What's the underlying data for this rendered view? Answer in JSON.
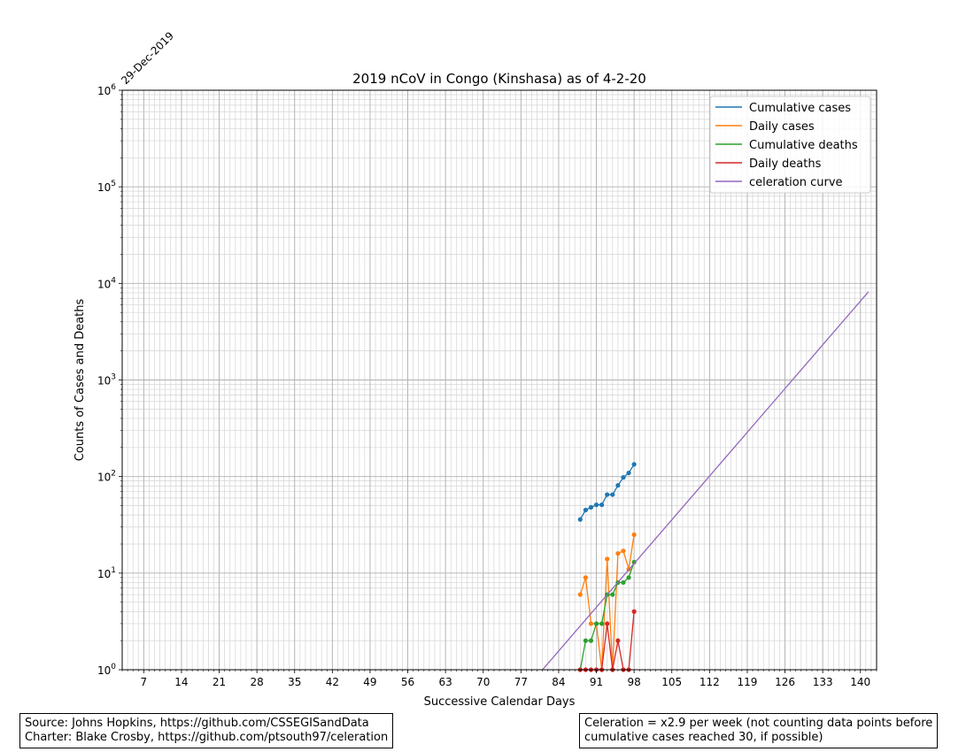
{
  "chart_data": {
    "type": "line",
    "title": "2019 nCoV in Congo (Kinshasa) as of 4-2-20",
    "xlabel": "Successive Calendar Days",
    "ylabel": "Counts of Cases and Deaths",
    "start_date_label": "29-Dec-2019",
    "x_scale": "linear",
    "y_scale": "log",
    "xlim": [
      3,
      143
    ],
    "ylim": [
      1,
      1000000
    ],
    "x_ticks": [
      7,
      14,
      21,
      28,
      35,
      42,
      49,
      56,
      63,
      70,
      77,
      84,
      91,
      98,
      105,
      112,
      119,
      126,
      133,
      140
    ],
    "y_ticks": [
      1,
      10,
      100,
      1000,
      10000,
      100000,
      1000000
    ],
    "y_tick_labels": [
      {
        "base": "10",
        "exp": "0"
      },
      {
        "base": "10",
        "exp": "1"
      },
      {
        "base": "10",
        "exp": "2"
      },
      {
        "base": "10",
        "exp": "3"
      },
      {
        "base": "10",
        "exp": "4"
      },
      {
        "base": "10",
        "exp": "5"
      },
      {
        "base": "10",
        "exp": "6"
      }
    ],
    "grid": true,
    "legend_position": "top-right",
    "series": [
      {
        "name": "Cumulative cases",
        "color": "#1f77b4",
        "markers": true,
        "x": [
          88,
          89,
          90,
          91,
          92,
          93,
          94,
          95,
          96,
          97,
          98
        ],
        "y": [
          36,
          45,
          48,
          51,
          51,
          65,
          65,
          81,
          98,
          109,
          134
        ]
      },
      {
        "name": "Daily cases",
        "color": "#ff7f0e",
        "markers": true,
        "x": [
          88,
          89,
          90,
          91,
          92,
          93,
          94,
          95,
          96,
          97,
          98
        ],
        "y": [
          6,
          9,
          3,
          3,
          1,
          14,
          1,
          16,
          17,
          11,
          25
        ]
      },
      {
        "name": "Cumulative deaths",
        "color": "#2ca02c",
        "markers": true,
        "x": [
          88,
          89,
          90,
          91,
          92,
          93,
          94,
          95,
          96,
          97,
          98
        ],
        "y": [
          1,
          2,
          2,
          3,
          3,
          6,
          6,
          8,
          8,
          9,
          13
        ]
      },
      {
        "name": "Daily deaths",
        "color": "#d62728",
        "markers": true,
        "x": [
          88,
          89,
          90,
          91,
          92,
          93,
          94,
          95,
          96,
          97,
          98
        ],
        "y": [
          1,
          1,
          1,
          1,
          1,
          3,
          1,
          2,
          1,
          1,
          4
        ]
      },
      {
        "name": "celeration curve",
        "color": "#9467bd",
        "markers": false,
        "x": [
          81,
          141.5
        ],
        "y": [
          1,
          8200
        ]
      }
    ]
  },
  "notes": {
    "source_line1": "Source: Johns Hopkins, https://github.com/CSSEGISandData",
    "source_line2": "Charter: Blake Crosby, https://github.com/ptsouth97/celeration",
    "celeration_line1": "Celeration = x2.9 per week (not counting data points before",
    "celeration_line2": "cumulative cases reached 30, if possible)"
  }
}
